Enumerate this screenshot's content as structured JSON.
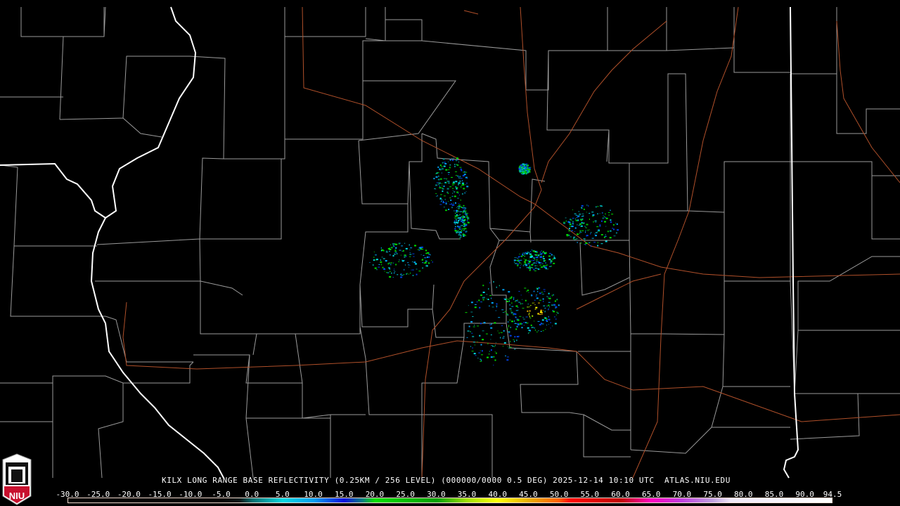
{
  "title": "KILX LONG RANGE BASE REFLECTIVITY (0.25KM / 256 LEVEL) (000000/0000 0.5 DEG) 2025-12-14 10:10 UTC  ATLAS.NIU.EDU",
  "logo": {
    "text": "NIU",
    "icon": "niu-shield-logo"
  },
  "legend": {
    "unit_range": [
      -30.0,
      94.5
    ],
    "ticks": [
      "-30.0",
      "-25.0",
      "-20.0",
      "-15.0",
      "-10.0",
      "-5.0",
      "0.0",
      "5.0",
      "10.0",
      "15.0",
      "20.0",
      "25.0",
      "30.0",
      "35.0",
      "40.0",
      "45.0",
      "50.0",
      "55.0",
      "60.0",
      "65.0",
      "70.0",
      "75.0",
      "80.0",
      "85.0",
      "90.0",
      "94.5"
    ],
    "color_stops": [
      {
        "value": -30,
        "color": "#000000"
      },
      {
        "value": -5,
        "color": "#000000"
      },
      {
        "value": -2,
        "color": "#0a1a1a"
      },
      {
        "value": 0,
        "color": "#007070"
      },
      {
        "value": 5,
        "color": "#00d8e0"
      },
      {
        "value": 10,
        "color": "#00a0f0"
      },
      {
        "value": 15,
        "color": "#0010e0"
      },
      {
        "value": 18,
        "color": "#008080"
      },
      {
        "value": 20,
        "color": "#00e000"
      },
      {
        "value": 30,
        "color": "#00a000"
      },
      {
        "value": 35,
        "color": "#a0e000"
      },
      {
        "value": 40,
        "color": "#ffff00"
      },
      {
        "value": 45,
        "color": "#e8b000"
      },
      {
        "value": 50,
        "color": "#ff6000"
      },
      {
        "value": 52,
        "color": "#ff0000"
      },
      {
        "value": 60,
        "color": "#c00000"
      },
      {
        "value": 65,
        "color": "#ff00c0"
      },
      {
        "value": 70,
        "color": "#c040e0"
      },
      {
        "value": 75,
        "color": "#c0a0e0"
      },
      {
        "value": 78,
        "color": "#f0e8f8"
      },
      {
        "value": 94.5,
        "color": "#ffffff"
      }
    ]
  },
  "colors": {
    "background": "#000000",
    "county_lines": "#9a9a9a",
    "state_lines": "#ffffff",
    "roads": "#b0502a"
  }
}
